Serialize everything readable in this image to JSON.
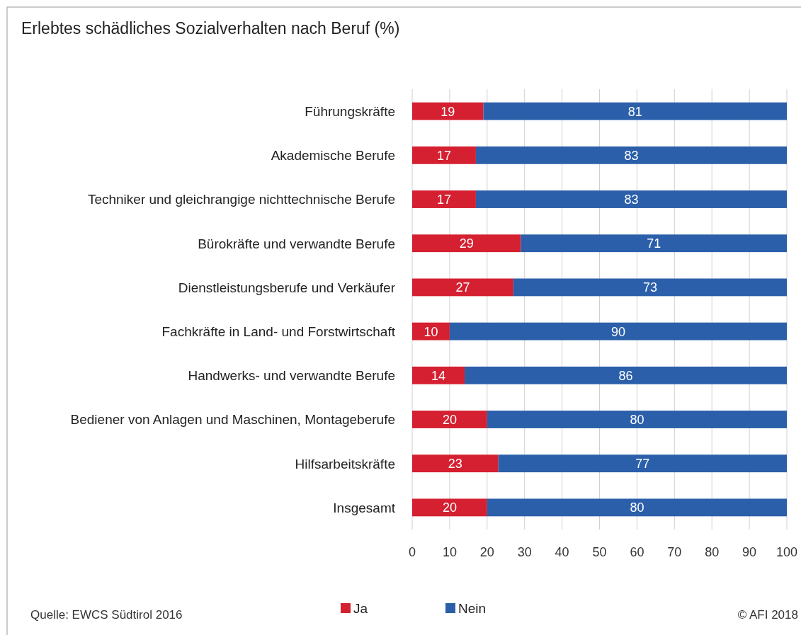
{
  "chart_data": {
    "type": "bar",
    "orientation": "horizontal",
    "stacked": true,
    "title": "Erlebtes schädliches Sozialverhalten nach Beruf (%)",
    "categories": [
      "Führungskräfte",
      "Akademische Berufe",
      "Techniker und gleichrangige nichttechnische Berufe",
      "Bürokräfte und verwandte Berufe",
      "Dienstleistungsberufe und Verkäufer",
      "Fachkräfte in Land- und Forstwirtschaft",
      "Handwerks- und verwandte Berufe",
      "Bediener von Anlagen und Maschinen, Montageberufe",
      "Hilfsarbeitskräfte",
      "Insgesamt"
    ],
    "series": [
      {
        "name": "Ja",
        "color": "#d42030",
        "values": [
          19,
          17,
          17,
          29,
          27,
          10,
          14,
          20,
          23,
          20
        ]
      },
      {
        "name": "Nein",
        "color": "#2b5faa",
        "values": [
          81,
          83,
          83,
          71,
          73,
          90,
          86,
          80,
          77,
          80
        ]
      }
    ],
    "xlim": [
      0,
      100
    ],
    "xticks": [
      0,
      10,
      20,
      30,
      40,
      50,
      60,
      70,
      80,
      90,
      100
    ],
    "grid": "x",
    "data_labels": true,
    "legend": "bottom",
    "annotations": [
      "Quelle: EWCS Südtirol 2016",
      "© AFI 2018"
    ]
  }
}
